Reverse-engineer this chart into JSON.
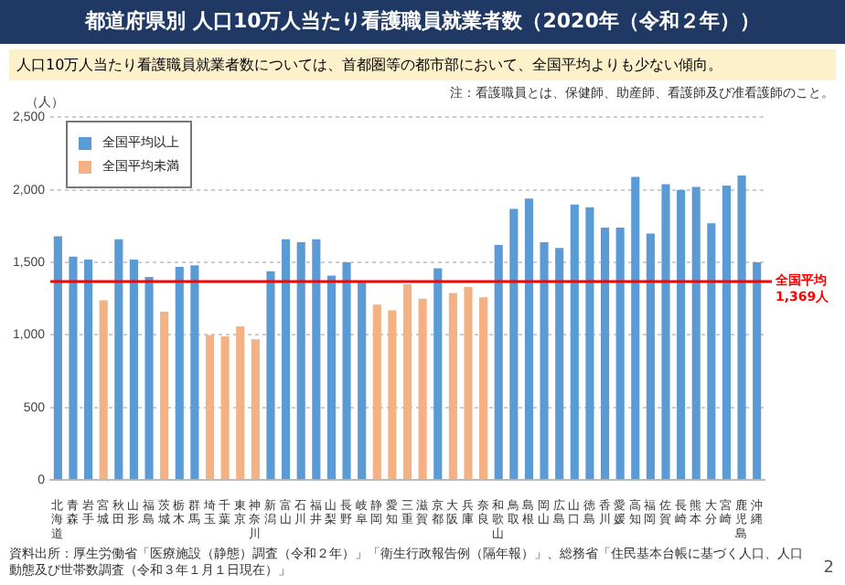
{
  "chart_data": {
    "type": "bar",
    "title": "都道府県別 人口10万人当たり看護職員就業者数（2020年（令和２年））",
    "subtitle": "人口10万人当たり看護職員就業者数については、首都圏等の都市部において、全国平均よりも少ない傾向。",
    "ylabel": "（人）",
    "categories": [
      "北海道",
      "青森",
      "岩手",
      "宮城",
      "秋田",
      "山形",
      "福島",
      "茨城",
      "栃木",
      "群馬",
      "埼玉",
      "千葉",
      "東京",
      "神奈川",
      "新潟",
      "富山",
      "石川",
      "福井",
      "山梨",
      "長野",
      "岐阜",
      "静岡",
      "愛知",
      "三重",
      "滋賀",
      "京都",
      "大阪",
      "兵庫",
      "奈良",
      "和歌山",
      "鳥取",
      "島根",
      "岡山",
      "広島",
      "山口",
      "徳島",
      "香川",
      "愛媛",
      "高知",
      "福岡",
      "佐賀",
      "長崎",
      "熊本",
      "大分",
      "宮崎",
      "鹿児島",
      "沖縄"
    ],
    "series": [
      {
        "name": "全国平均以上",
        "color": "#5b9bd5",
        "values": [
          1680,
          1540,
          1520,
          null,
          1660,
          1520,
          1400,
          null,
          1470,
          1480,
          null,
          null,
          null,
          null,
          1440,
          1660,
          1640,
          1660,
          1410,
          1500,
          1370,
          null,
          null,
          null,
          null,
          1460,
          null,
          null,
          null,
          1620,
          1870,
          1940,
          1640,
          1600,
          1900,
          1880,
          1740,
          1740,
          2090,
          1700,
          2040,
          2000,
          2020,
          1770,
          2030,
          2100,
          1500
        ]
      },
      {
        "name": "全国平均未満",
        "color": "#f4b183",
        "values": [
          null,
          null,
          null,
          1240,
          null,
          null,
          null,
          1160,
          null,
          null,
          1000,
          990,
          1060,
          970,
          null,
          null,
          null,
          null,
          null,
          null,
          null,
          1210,
          1170,
          1350,
          1250,
          null,
          1290,
          1330,
          1260,
          null,
          null,
          null,
          null,
          null,
          null,
          null,
          null,
          null,
          null,
          null,
          null,
          null,
          null,
          null,
          null,
          null,
          null
        ]
      }
    ],
    "ylim": [
      0,
      2500
    ],
    "yticks": [
      0,
      {
        "value": 500,
        "label": "500"
      },
      {
        "value": 1000,
        "label": "1,000"
      },
      {
        "value": 1500,
        "label": "1,500"
      },
      {
        "value": 2000,
        "label": "2,000"
      },
      {
        "value": 2500,
        "label": "2,500"
      }
    ],
    "grid": "y",
    "legend": "top left",
    "ref_lines": [
      {
        "axis": "y",
        "value": 1369,
        "label": "全国平均\n1,369人",
        "color": "#ff0000"
      }
    ],
    "annotations": [
      "注：看護職員とは、保健師、助産師、看護師及び准看護師のこと。",
      "資料出所：厚生労働省「医療施設（静態）調査（令和２年）」「衛生行政報告例（隔年報）」、総務省「住民基本台帳に基づく人口、人口動態及び世帯数調査（令和３年１月１日現在）」",
      "2"
    ]
  }
}
